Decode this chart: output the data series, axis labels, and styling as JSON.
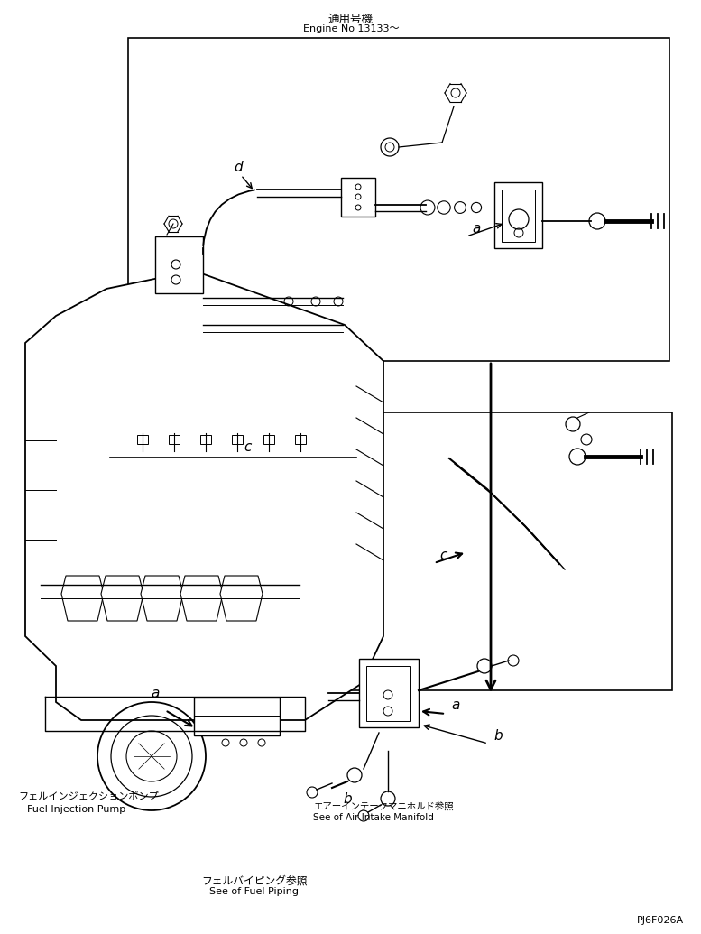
{
  "title_jp": "通用号機",
  "title_en": "Engine No 13133～",
  "footer_left_jp": "フェルバイピング参照",
  "footer_left_en": "See of Fuel Piping",
  "footer_right_jp": "エアーインテークマニホルド参照",
  "footer_right_en": "See of Air Intake Manifold",
  "pump_label_jp": "フェルインジェクションボンプ",
  "pump_label_en": "Fuel Injection Pump",
  "part_number": "PJ6F026A",
  "bg_color": "#ffffff",
  "line_color": "#000000"
}
